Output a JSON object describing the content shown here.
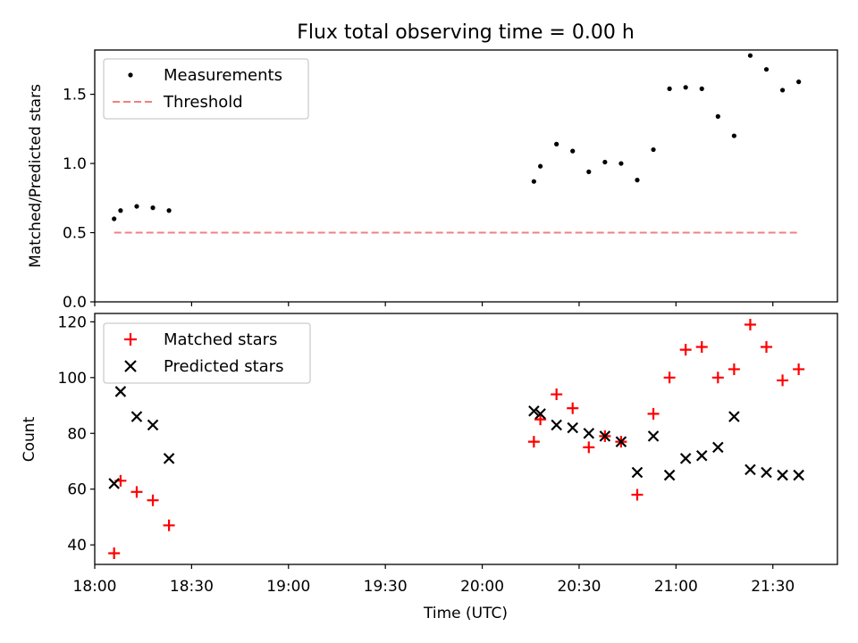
{
  "chart_data": [
    {
      "type": "scatter",
      "title": "Flux total observing time = 0.00 h",
      "xlabel": "",
      "ylabel": "Matched/Predicted stars",
      "xlim": [
        "18:00",
        "21:50"
      ],
      "ylim": [
        0,
        1.82
      ],
      "yticks": [
        0.0,
        0.5,
        1.0,
        1.5
      ],
      "ytick_labels": [
        "0.0",
        "0.5",
        "1.0",
        "1.5"
      ],
      "legend": "top-left",
      "series": [
        {
          "name": "Measurements",
          "marker": "dot",
          "color": "#000000",
          "x": [
            "18:06",
            "18:08",
            "18:13",
            "18:18",
            "18:23",
            "20:16",
            "20:18",
            "20:23",
            "20:28",
            "20:33",
            "20:38",
            "20:43",
            "20:48",
            "20:53",
            "20:58",
            "21:03",
            "21:08",
            "21:13",
            "21:18",
            "21:23",
            "21:28",
            "21:33",
            "21:38"
          ],
          "y": [
            0.6,
            0.66,
            0.69,
            0.68,
            0.66,
            0.87,
            0.98,
            1.14,
            1.09,
            0.94,
            1.01,
            1.0,
            0.88,
            1.1,
            1.54,
            1.55,
            1.54,
            1.34,
            1.2,
            1.78,
            1.68,
            1.53,
            1.59
          ]
        },
        {
          "name": "Threshold",
          "marker": "dashed-line",
          "color": "#f08080",
          "x": [
            "18:06",
            "21:38"
          ],
          "y": [
            0.5,
            0.5
          ]
        }
      ]
    },
    {
      "type": "scatter",
      "title": "",
      "xlabel": "Time (UTC)",
      "ylabel": "Count",
      "xlim": [
        "18:00",
        "21:50"
      ],
      "ylim": [
        33,
        123
      ],
      "yticks": [
        40,
        60,
        80,
        100,
        120
      ],
      "ytick_labels": [
        "40",
        "60",
        "80",
        "100",
        "120"
      ],
      "xticks": [
        "18:00",
        "18:30",
        "19:00",
        "19:30",
        "20:00",
        "20:30",
        "21:00",
        "21:30"
      ],
      "xtick_labels": [
        "18:00",
        "18:30",
        "19:00",
        "19:30",
        "20:00",
        "20:30",
        "21:00",
        "21:30"
      ],
      "legend": "top-left",
      "series": [
        {
          "name": "Matched stars",
          "marker": "plus",
          "color": "#ff0000",
          "x": [
            "18:06",
            "18:08",
            "18:13",
            "18:18",
            "18:23",
            "20:16",
            "20:18",
            "20:23",
            "20:28",
            "20:33",
            "20:38",
            "20:43",
            "20:48",
            "20:53",
            "20:58",
            "21:03",
            "21:08",
            "21:13",
            "21:18",
            "21:23",
            "21:28",
            "21:33",
            "21:38"
          ],
          "y": [
            37,
            63,
            59,
            56,
            47,
            77,
            85,
            94,
            89,
            75,
            79,
            77,
            58,
            87,
            100,
            110,
            111,
            100,
            103,
            119,
            111,
            99,
            103
          ]
        },
        {
          "name": "Predicted stars",
          "marker": "x",
          "color": "#000000",
          "x": [
            "18:06",
            "18:08",
            "18:13",
            "18:18",
            "18:23",
            "20:16",
            "20:18",
            "20:23",
            "20:28",
            "20:33",
            "20:38",
            "20:43",
            "20:48",
            "20:53",
            "20:58",
            "21:03",
            "21:08",
            "21:13",
            "21:18",
            "21:23",
            "21:28",
            "21:33",
            "21:38"
          ],
          "y": [
            62,
            95,
            86,
            83,
            71,
            88,
            87,
            83,
            82,
            80,
            79,
            77,
            66,
            79,
            65,
            71,
            72,
            75,
            86,
            67,
            66,
            65,
            65
          ]
        }
      ]
    }
  ]
}
